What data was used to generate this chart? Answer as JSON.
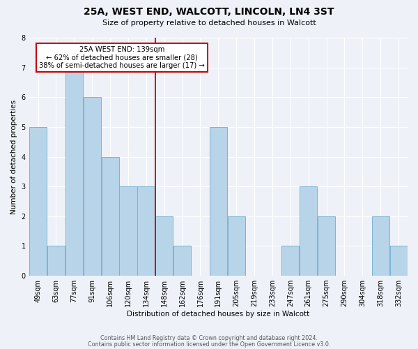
{
  "title": "25A, WEST END, WALCOTT, LINCOLN, LN4 3ST",
  "subtitle": "Size of property relative to detached houses in Walcott",
  "xlabel": "Distribution of detached houses by size in Walcott",
  "ylabel": "Number of detached properties",
  "bin_labels": [
    "49sqm",
    "63sqm",
    "77sqm",
    "91sqm",
    "106sqm",
    "120sqm",
    "134sqm",
    "148sqm",
    "162sqm",
    "176sqm",
    "191sqm",
    "205sqm",
    "219sqm",
    "233sqm",
    "247sqm",
    "261sqm",
    "275sqm",
    "290sqm",
    "304sqm",
    "318sqm",
    "332sqm"
  ],
  "bar_values": [
    5,
    1,
    7,
    6,
    4,
    3,
    3,
    2,
    1,
    0,
    5,
    2,
    0,
    0,
    1,
    3,
    2,
    0,
    0,
    2,
    1
  ],
  "bar_color": "#b8d4e8",
  "bar_edge_color": "#7ab4d4",
  "property_line_index": 6,
  "property_label": "25A WEST END: 139sqm",
  "annotation_line1": "← 62% of detached houses are smaller (28)",
  "annotation_line2": "38% of semi-detached houses are larger (17) →",
  "annotation_box_color": "#ffffff",
  "annotation_box_edge_color": "#cc0000",
  "property_line_color": "#cc0000",
  "ylim": [
    0,
    8
  ],
  "yticks": [
    0,
    1,
    2,
    3,
    4,
    5,
    6,
    7,
    8
  ],
  "background_color": "#eef2f8",
  "grid_color": "#ffffff",
  "footer_line1": "Contains HM Land Registry data © Crown copyright and database right 2024.",
  "footer_line2": "Contains public sector information licensed under the Open Government Licence v3.0."
}
